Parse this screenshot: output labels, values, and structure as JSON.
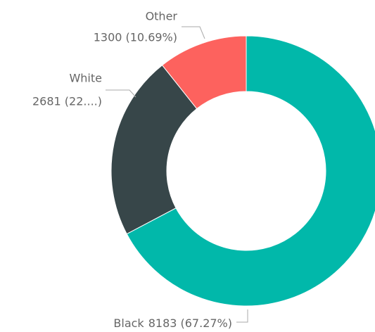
{
  "chart_data": {
    "type": "donut",
    "categories": [
      "Black",
      "White",
      "Other"
    ],
    "values": [
      8183,
      2681,
      1300
    ],
    "value_labels": [
      "8183 (67.27%)",
      "2681 (22....)",
      "1300 (10.69%)"
    ],
    "colors": [
      "#01B8AA",
      "#374649",
      "#FD625E"
    ]
  }
}
